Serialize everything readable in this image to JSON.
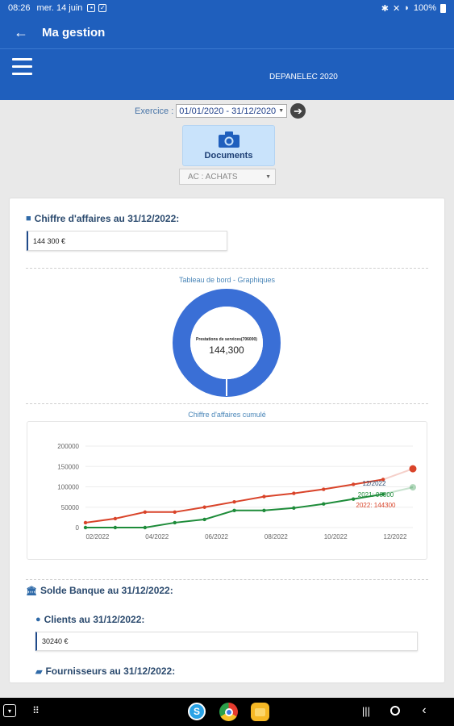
{
  "status_bar": {
    "time": "08:26",
    "date": "mer. 14 juin",
    "battery": "100%"
  },
  "app_bar": {
    "title": "Ma gestion"
  },
  "header": {
    "company": "DEPANELEC 2020"
  },
  "exercice": {
    "label": "Exercice :",
    "value": "01/01/2020 - 31/12/2020"
  },
  "documents_button": {
    "label": "Documents"
  },
  "journal_select": {
    "value": "AC : ACHATS"
  },
  "chiffre_affaires": {
    "title": "Chiffre d'affaires au 31/12/2022:",
    "value": "144 300 €"
  },
  "dashboard": {
    "title": "Tableau de bord - Graphiques",
    "donut_label": "Prestations de services(706000)",
    "donut_value": "144,300"
  },
  "cumul_chart": {
    "title": "Chiffre d'affaires cumulé"
  },
  "solde_banque": {
    "title": "Solde Banque au 31/12/2022:"
  },
  "clients": {
    "title": "Clients au 31/12/2022:",
    "value": "30240 €"
  },
  "fournisseurs": {
    "title": "Fournisseurs au 31/12/2022:"
  },
  "colors": {
    "primary": "#1f5fbd",
    "series_2021": "#1e8c3a",
    "series_2022": "#d9442a",
    "donut": "#3a6fd6"
  },
  "chart_data": {
    "type": "line",
    "title": "Chiffre d'affaires cumulé",
    "x": [
      "01/2022",
      "02/2022",
      "03/2022",
      "04/2022",
      "05/2022",
      "06/2022",
      "07/2022",
      "08/2022",
      "09/2022",
      "10/2022",
      "11/2022",
      "12/2022"
    ],
    "x_tick_labels": [
      "02/2022",
      "04/2022",
      "06/2022",
      "08/2022",
      "10/2022",
      "12/2022"
    ],
    "y_tick_labels": [
      "0",
      "50000",
      "100000",
      "150000",
      "200000"
    ],
    "ylim": [
      0,
      200000
    ],
    "grid": "horizontal",
    "series": [
      {
        "name": "2021",
        "values": [
          0,
          0,
          0,
          12000,
          20000,
          42000,
          42000,
          48000,
          58000,
          70000,
          82000,
          98800
        ]
      },
      {
        "name": "2022",
        "values": [
          12000,
          22000,
          38000,
          38000,
          50000,
          63000,
          76000,
          84000,
          94000,
          106000,
          118000,
          144300
        ]
      }
    ],
    "tooltip": {
      "header": "12/2022",
      "lines": [
        "2021: 98800",
        "2022: 144300"
      ]
    }
  }
}
